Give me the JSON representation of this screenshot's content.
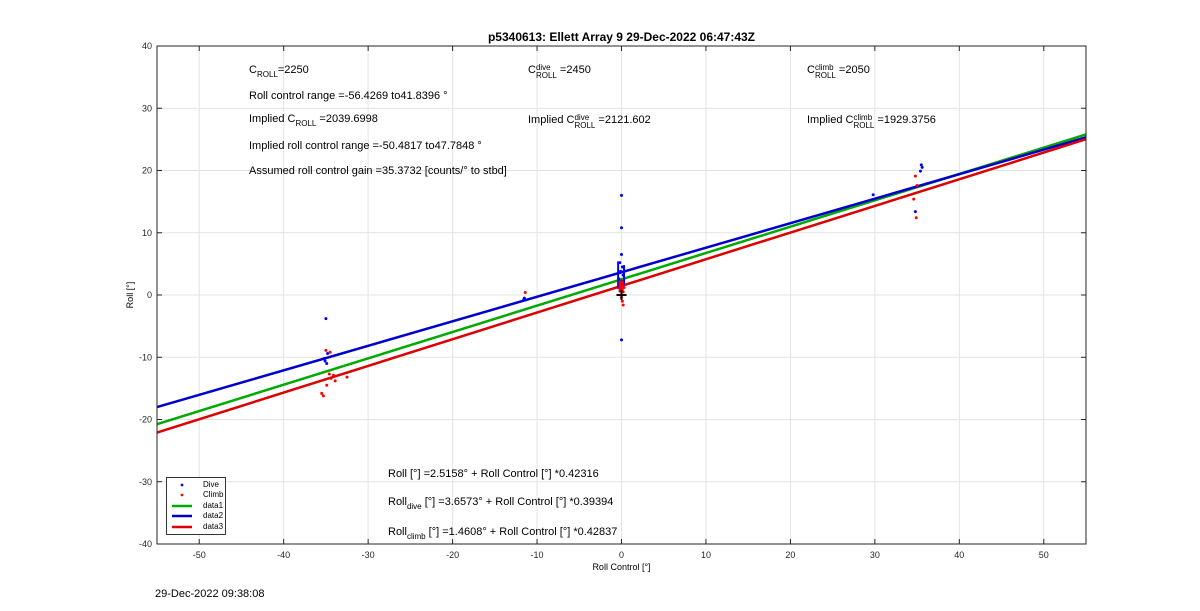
{
  "chart_data": {
    "type": "scatter",
    "title": "p5340613: Ellett Array 9 29-Dec-2022 06:47:43Z",
    "xlabel": "Roll Control [°]",
    "ylabel": "Roll [°]",
    "xlim": [
      -55,
      55
    ],
    "ylim": [
      -40,
      40
    ],
    "xticks": [
      -50,
      -40,
      -30,
      -20,
      -10,
      0,
      10,
      20,
      30,
      40,
      50
    ],
    "yticks": [
      -40,
      -30,
      -20,
      -10,
      0,
      10,
      20,
      30,
      40
    ],
    "grid": true,
    "legend_position": "bottom-left",
    "series": [
      {
        "name": "Dive",
        "kind": "points",
        "color": "#0000ff",
        "points": [
          [
            -35.0,
            -3.8
          ],
          [
            -35.2,
            -10.2
          ],
          [
            -35.1,
            -10.6
          ],
          [
            -34.9,
            -11.0
          ],
          [
            -34.8,
            -9.4
          ],
          [
            -11.5,
            -0.5
          ],
          [
            -11.6,
            -0.8
          ],
          [
            0.0,
            16.0
          ],
          [
            0.0,
            10.8
          ],
          [
            0.0,
            6.5
          ],
          [
            -0.2,
            5.2
          ],
          [
            0.1,
            4.5
          ],
          [
            -0.1,
            3.8
          ],
          [
            0.2,
            3.2
          ],
          [
            -0.3,
            2.6
          ],
          [
            0.0,
            2.2
          ],
          [
            0.1,
            1.8
          ],
          [
            -0.1,
            1.2
          ],
          [
            0.0,
            -7.2
          ],
          [
            29.8,
            16.1
          ],
          [
            34.8,
            13.4
          ],
          [
            35.5,
            20.9
          ],
          [
            35.6,
            20.5
          ],
          [
            35.4,
            19.9
          ],
          [
            34.9,
            17.4
          ]
        ]
      },
      {
        "name": "Climb",
        "kind": "points",
        "color": "#ff0000",
        "points": [
          [
            -35.5,
            -15.8
          ],
          [
            -35.3,
            -16.2
          ],
          [
            -34.9,
            -14.5
          ],
          [
            -34.6,
            -12.7
          ],
          [
            -34.4,
            -13.4
          ],
          [
            -34.1,
            -12.9
          ],
          [
            -33.9,
            -13.8
          ],
          [
            -32.5,
            -13.2
          ],
          [
            -35.0,
            -8.9
          ],
          [
            -34.5,
            -9.2
          ],
          [
            -11.4,
            0.4
          ],
          [
            0.0,
            2.0
          ],
          [
            0.1,
            1.5
          ],
          [
            -0.1,
            1.0
          ],
          [
            0.2,
            0.5
          ],
          [
            0.0,
            -0.4
          ],
          [
            0.1,
            -1.0
          ],
          [
            0.2,
            -1.6
          ],
          [
            -0.2,
            1.8
          ],
          [
            0.3,
            1.2
          ],
          [
            34.6,
            15.4
          ],
          [
            34.9,
            12.4
          ],
          [
            34.8,
            19.1
          ],
          [
            35.0,
            17.6
          ]
        ]
      },
      {
        "name": "data1",
        "kind": "line",
        "color": "#00aa00",
        "intercept": 2.5158,
        "slope": 0.42316
      },
      {
        "name": "data2",
        "kind": "line",
        "color": "#0000cc",
        "intercept": 3.6573,
        "slope": 0.39394
      },
      {
        "name": "data3",
        "kind": "line",
        "color": "#dd0000",
        "intercept": 1.4608,
        "slope": 0.42837
      }
    ]
  },
  "annotations": {
    "c_roll": "C",
    "c_roll_sub": "ROLL",
    "c_roll_val": "=2250",
    "c_dive": "C",
    "c_dive_sup": "dive",
    "c_dive_sub": "ROLL",
    "c_dive_val": " =2450",
    "c_climb": "C",
    "c_climb_sup": "climb",
    "c_climb_sub": "ROLL",
    "c_climb_val": " =2050",
    "roll_range": "Roll control range =-56.4269 to41.8396 °",
    "implied_c": "Implied C",
    "implied_c_sub": "ROLL",
    "implied_c_val": " =2039.6998",
    "implied_dive": "Implied C",
    "implied_dive_sup": "dive",
    "implied_dive_sub": "ROLL",
    "implied_dive_val": " =2121.602",
    "implied_climb": "Implied C",
    "implied_climb_sup": "climb",
    "implied_climb_sub": "ROLL",
    "implied_climb_val": " =1929.3756",
    "implied_range": "Implied roll control range =-50.4817 to47.7848 °",
    "gain": "Assumed roll control gain =35.3732 [counts/° to stbd]",
    "fit_all": "Roll [°] =2.5158° + Roll Control [°] *0.42316",
    "fit_dive_a": "Roll",
    "fit_dive_sub": "dive",
    "fit_dive_b": " [°] =3.6573° + Roll Control [°] *0.39394",
    "fit_climb_a": "Roll",
    "fit_climb_sub": "climb",
    "fit_climb_b": " [°] =1.4608° + Roll Control [°] *0.42837"
  },
  "footer": {
    "timestamp": "29-Dec-2022 09:38:08"
  }
}
